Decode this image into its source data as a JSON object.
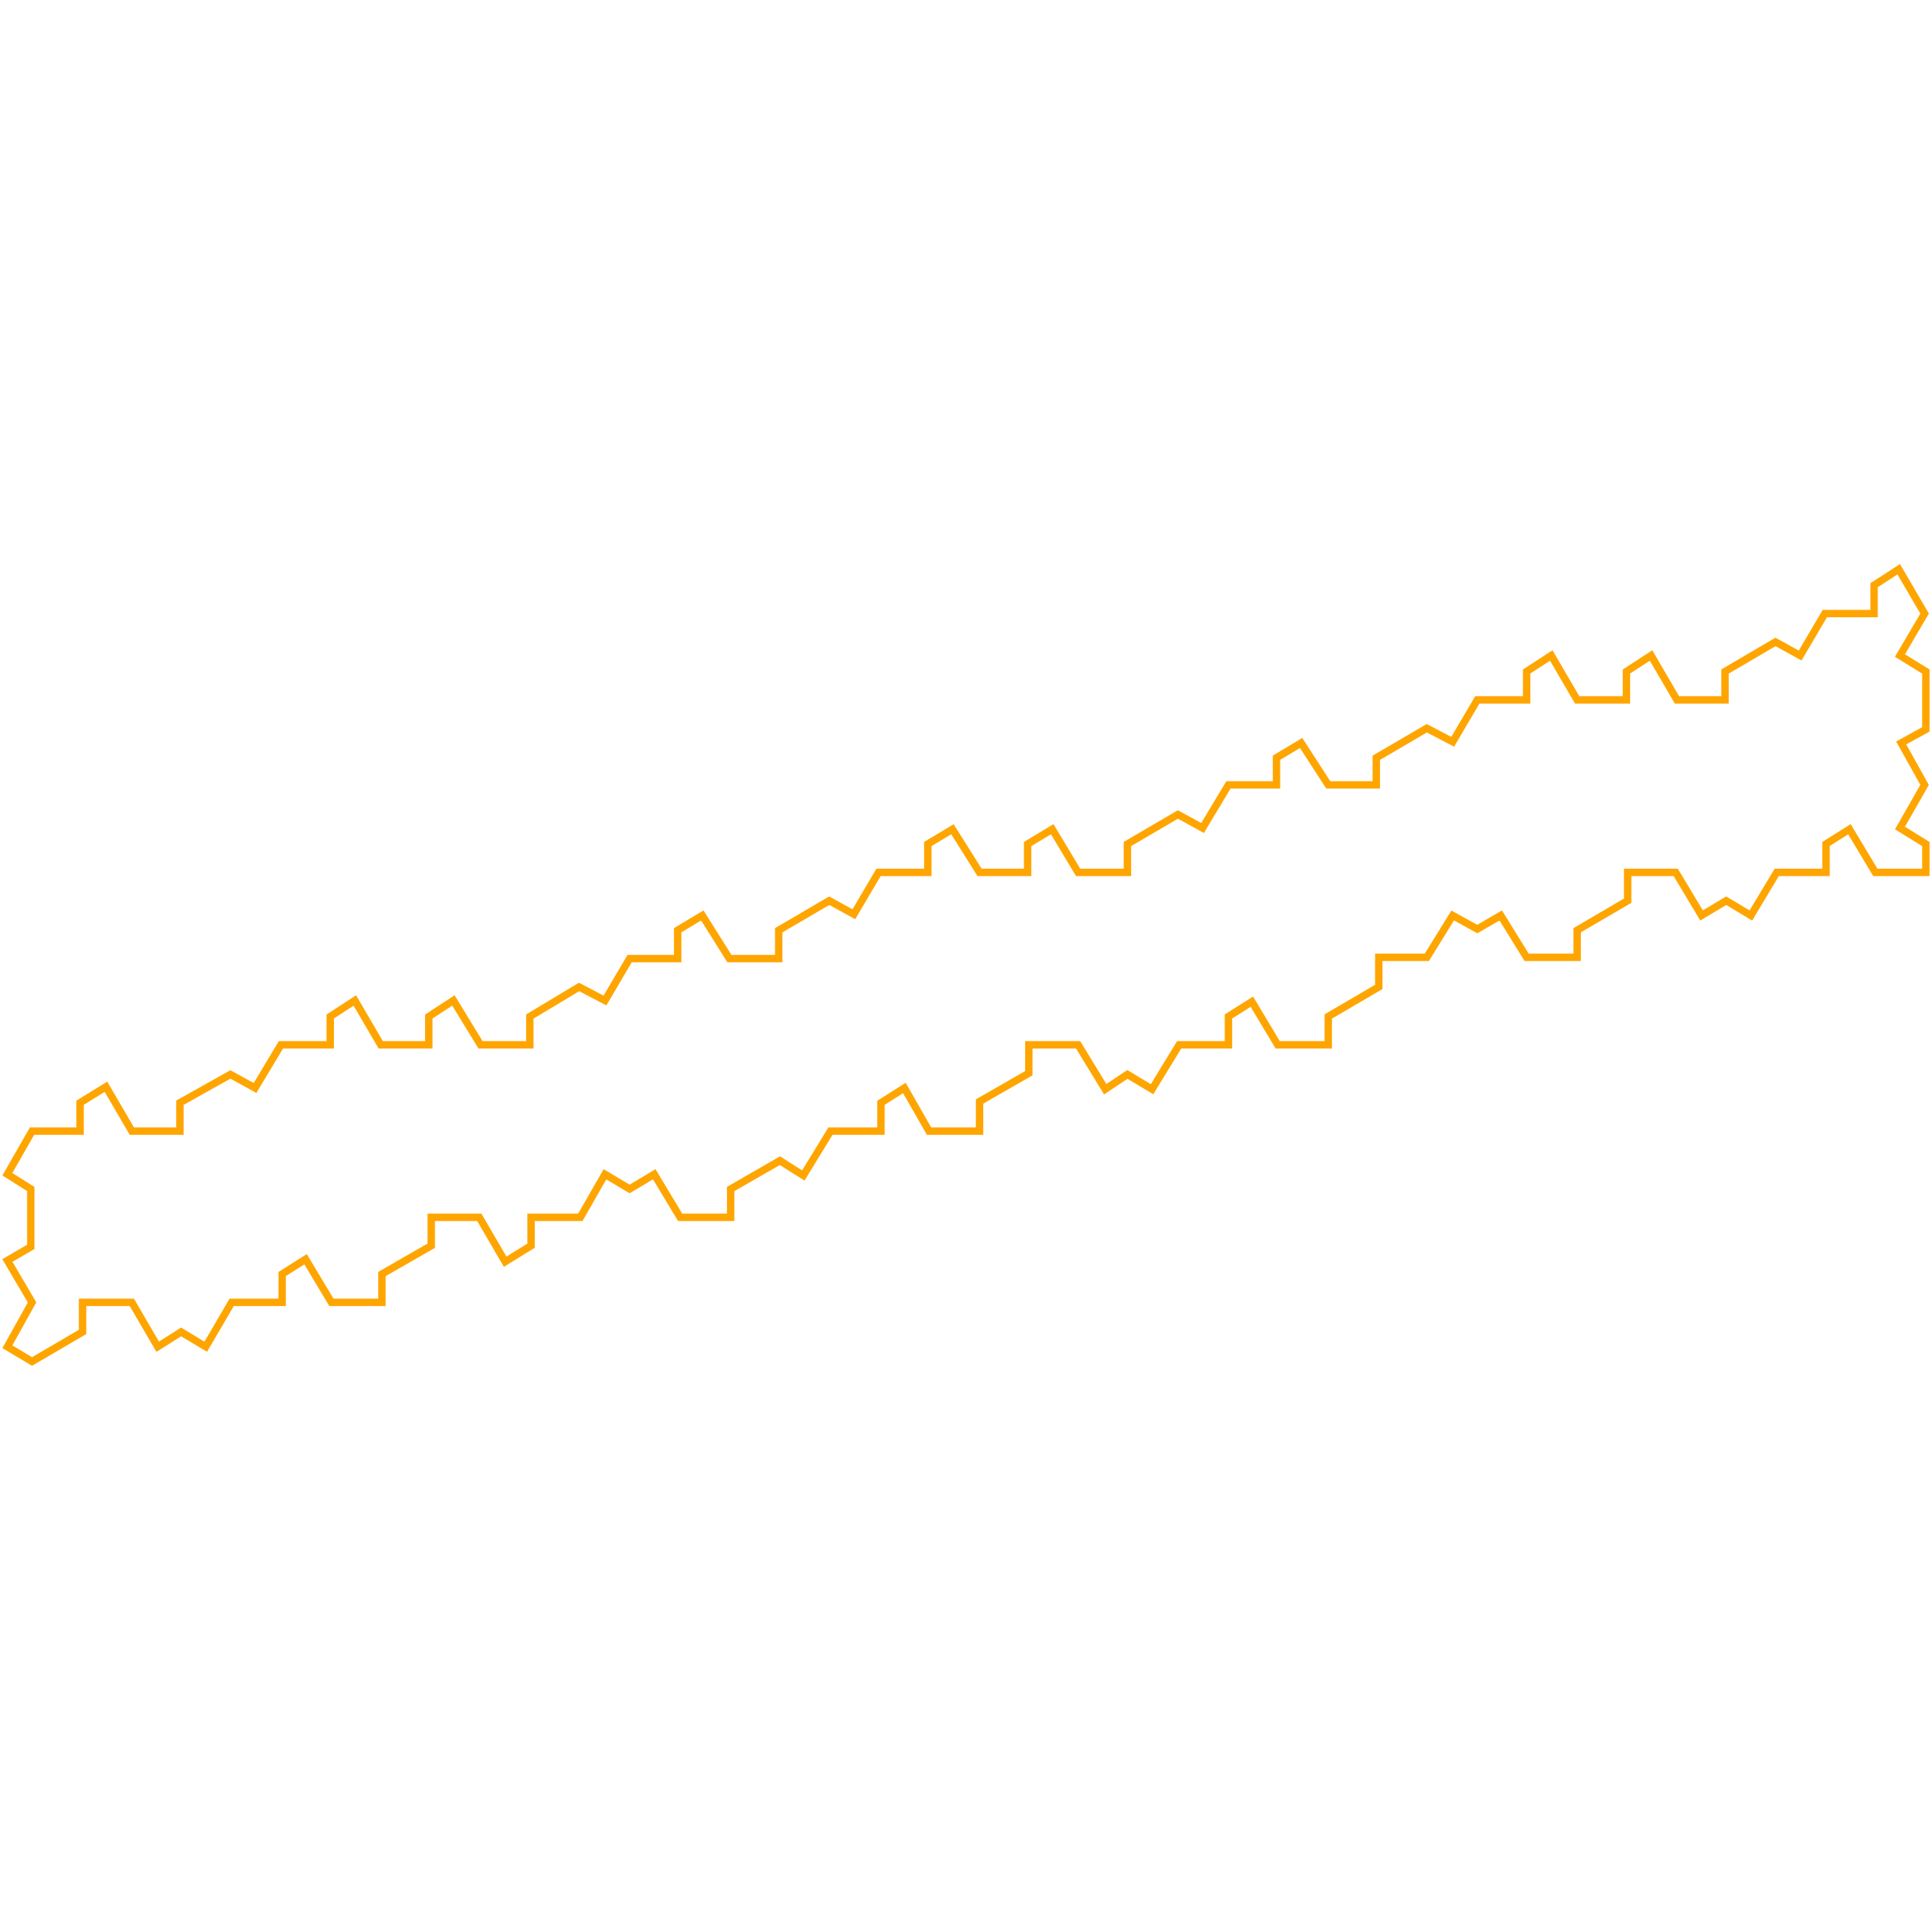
{
  "figure": {
    "shape": "closed jagged outline",
    "stroke_color": "#FFA500",
    "background_color": "#FFFFFF"
  }
}
